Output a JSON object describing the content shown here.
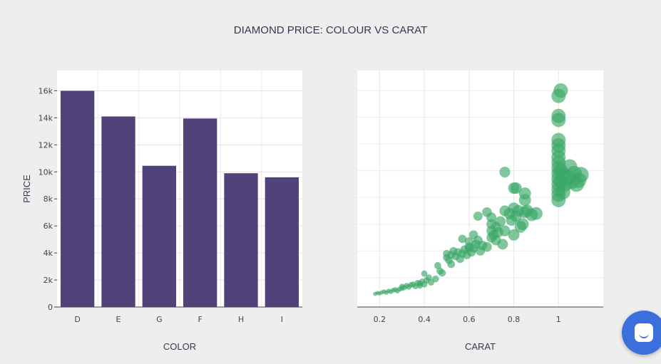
{
  "title": "DIAMOND PRICE: COLOUR VS CARAT",
  "colors": {
    "background": "#eeeeee",
    "panel": "#ffffff",
    "bar": "#52427a",
    "point": "#3aa767",
    "chat": "#3b6fdc"
  },
  "chart_data": [
    {
      "type": "bar",
      "categories": [
        "D",
        "E",
        "G",
        "F",
        "H",
        "I"
      ],
      "values": [
        16000,
        14100,
        10450,
        13950,
        9900,
        9600
      ],
      "xlabel": "COLOR",
      "ylabel": "PRICE",
      "ylim": [
        0,
        17500
      ],
      "yticks": [
        0,
        2000,
        4000,
        6000,
        8000,
        10000,
        12000,
        14000,
        16000
      ],
      "ytick_labels": [
        "0",
        "2k",
        "4k",
        "6k",
        "8k",
        "10k",
        "12k",
        "14k",
        "16k"
      ],
      "grid": true
    },
    {
      "type": "scatter",
      "xlabel": "CARAT",
      "ylabel": "",
      "xlim": [
        0.1,
        1.2
      ],
      "ylim": [
        -200,
        17500
      ],
      "xticks": [
        0.2,
        0.4,
        0.6,
        0.8,
        1
      ],
      "xtick_labels": [
        "0.2",
        "0.4",
        "0.6",
        "0.8",
        "1"
      ],
      "grid": true,
      "marker_size": "proportional to carat",
      "points": [
        [
          0.18,
          780
        ],
        [
          0.19,
          850
        ],
        [
          0.2,
          820
        ],
        [
          0.21,
          900
        ],
        [
          0.22,
          950
        ],
        [
          0.23,
          880
        ],
        [
          0.24,
          1000
        ],
        [
          0.25,
          950
        ],
        [
          0.26,
          1050
        ],
        [
          0.27,
          1100
        ],
        [
          0.28,
          1000
        ],
        [
          0.29,
          1150
        ],
        [
          0.3,
          1200
        ],
        [
          0.3,
          1350
        ],
        [
          0.31,
          1250
        ],
        [
          0.32,
          1400
        ],
        [
          0.33,
          1300
        ],
        [
          0.34,
          1450
        ],
        [
          0.35,
          1500
        ],
        [
          0.36,
          1350
        ],
        [
          0.37,
          1600
        ],
        [
          0.38,
          1550
        ],
        [
          0.38,
          1400
        ],
        [
          0.39,
          1700
        ],
        [
          0.4,
          1500
        ],
        [
          0.4,
          2300
        ],
        [
          0.41,
          1800
        ],
        [
          0.42,
          2000
        ],
        [
          0.43,
          1650
        ],
        [
          0.45,
          1900
        ],
        [
          0.46,
          2900
        ],
        [
          0.47,
          2500
        ],
        [
          0.48,
          2350
        ],
        [
          0.5,
          3500
        ],
        [
          0.5,
          3800
        ],
        [
          0.51,
          3300
        ],
        [
          0.52,
          3700
        ],
        [
          0.52,
          3000
        ],
        [
          0.53,
          4000
        ],
        [
          0.54,
          3600
        ],
        [
          0.55,
          3900
        ],
        [
          0.56,
          3400
        ],
        [
          0.57,
          3800
        ],
        [
          0.58,
          4100
        ],
        [
          0.59,
          3700
        ],
        [
          0.6,
          4300
        ],
        [
          0.6,
          4700
        ],
        [
          0.61,
          3900
        ],
        [
          0.62,
          4200
        ],
        [
          0.62,
          5200
        ],
        [
          0.63,
          4500
        ],
        [
          0.64,
          4800
        ],
        [
          0.65,
          4000
        ],
        [
          0.66,
          4400
        ],
        [
          0.68,
          4300
        ],
        [
          0.7,
          5000
        ],
        [
          0.7,
          5500
        ],
        [
          0.7,
          6000
        ],
        [
          0.7,
          6500
        ],
        [
          0.71,
          5200
        ],
        [
          0.72,
          4800
        ],
        [
          0.72,
          5800
        ],
        [
          0.73,
          5400
        ],
        [
          0.74,
          6200
        ],
        [
          0.75,
          4500
        ],
        [
          0.76,
          5500
        ],
        [
          0.76,
          7000
        ],
        [
          0.78,
          6800
        ],
        [
          0.79,
          6300
        ],
        [
          0.8,
          5200
        ],
        [
          0.8,
          7200
        ],
        [
          0.81,
          6600
        ],
        [
          0.82,
          7000
        ],
        [
          0.83,
          5800
        ],
        [
          0.84,
          6000
        ],
        [
          0.85,
          6900
        ],
        [
          0.86,
          7000
        ],
        [
          0.88,
          6700
        ],
        [
          0.9,
          6800
        ],
        [
          0.76,
          9900
        ],
        [
          0.8,
          8700
        ],
        [
          0.81,
          8700
        ],
        [
          0.85,
          8300
        ],
        [
          0.85,
          7800
        ],
        [
          0.64,
          6600
        ],
        [
          0.68,
          6900
        ],
        [
          0.57,
          4900
        ],
        [
          0.6,
          4200
        ],
        [
          1.0,
          7800
        ],
        [
          1.0,
          8200
        ],
        [
          1.0,
          8600
        ],
        [
          1.0,
          9000
        ],
        [
          1.0,
          9400
        ],
        [
          1.0,
          9800
        ],
        [
          1.0,
          10200
        ],
        [
          1.0,
          10600
        ],
        [
          1.0,
          11000
        ],
        [
          1.0,
          11500
        ],
        [
          1.0,
          11900
        ],
        [
          1.0,
          12300
        ],
        [
          1.0,
          13800
        ],
        [
          1.0,
          14100
        ],
        [
          1.0,
          15600
        ],
        [
          1.01,
          16000
        ],
        [
          1.01,
          9200
        ],
        [
          1.01,
          10000
        ],
        [
          1.02,
          8400
        ],
        [
          1.02,
          9700
        ],
        [
          1.03,
          9000
        ],
        [
          1.04,
          9500
        ],
        [
          1.05,
          10300
        ],
        [
          1.06,
          9200
        ],
        [
          1.07,
          9800
        ],
        [
          1.08,
          9000
        ],
        [
          1.09,
          9300
        ],
        [
          1.1,
          9700
        ]
      ]
    }
  ]
}
